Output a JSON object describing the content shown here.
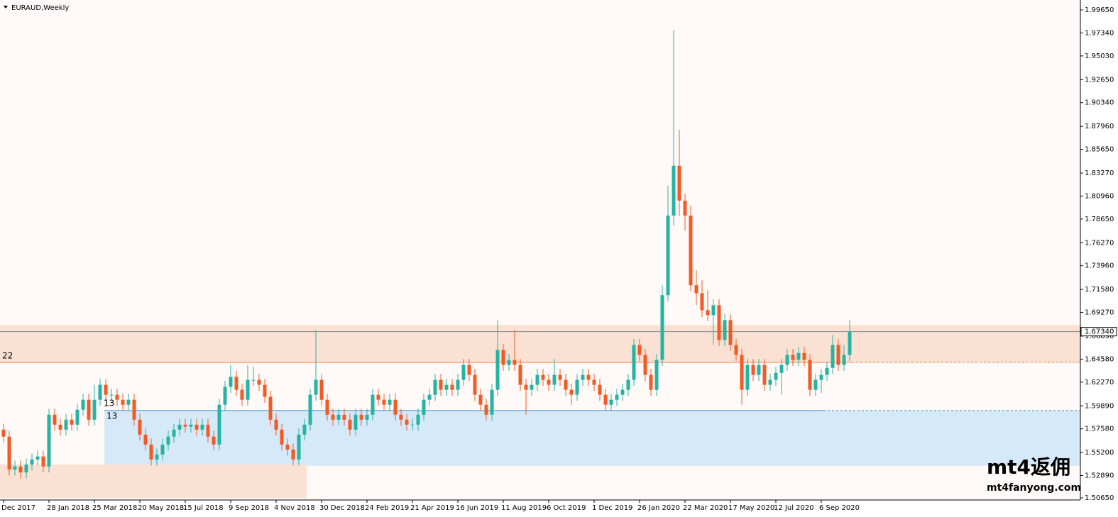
{
  "chart_data": {
    "type": "candlestick",
    "title": "EURAUD,Weekly",
    "up_color": "#26b3a3",
    "down_color": "#f25a26",
    "background": "#fffaf7",
    "ylim": [
      1.5065,
      1.9965
    ],
    "yticks": [
      {
        "value": 1.9965,
        "label": "1.99650"
      },
      {
        "value": 1.9734,
        "label": "1.97340"
      },
      {
        "value": 1.9503,
        "label": "1.95030"
      },
      {
        "value": 1.9265,
        "label": "1.92650"
      },
      {
        "value": 1.9034,
        "label": "1.90340"
      },
      {
        "value": 1.8796,
        "label": "1.87960"
      },
      {
        "value": 1.8565,
        "label": "1.85650"
      },
      {
        "value": 1.8327,
        "label": "1.83270"
      },
      {
        "value": 1.8096,
        "label": "1.80960"
      },
      {
        "value": 1.7865,
        "label": "1.78650"
      },
      {
        "value": 1.7627,
        "label": "1.76270"
      },
      {
        "value": 1.7396,
        "label": "1.73960"
      },
      {
        "value": 1.7158,
        "label": "1.71580"
      },
      {
        "value": 1.6927,
        "label": "1.69270"
      },
      {
        "value": 1.6689,
        "label": "1.66890"
      },
      {
        "value": 1.6458,
        "label": "1.64580"
      },
      {
        "value": 1.6227,
        "label": "1.62270"
      },
      {
        "value": 1.5989,
        "label": "1.59890"
      },
      {
        "value": 1.5758,
        "label": "1.57580"
      },
      {
        "value": 1.552,
        "label": "1.55200"
      },
      {
        "value": 1.5289,
        "label": "1.52890"
      },
      {
        "value": 1.5065,
        "label": "1.50650"
      }
    ],
    "categories": [
      "Dec 2017",
      null,
      null,
      null,
      null,
      null,
      null,
      null,
      "28 Jan 2018",
      null,
      null,
      null,
      null,
      null,
      null,
      null,
      "25 Mar 2018",
      null,
      null,
      null,
      null,
      null,
      null,
      null,
      "20 May 2018",
      null,
      null,
      null,
      null,
      null,
      null,
      null,
      "15 Jul 2018",
      null,
      null,
      null,
      null,
      null,
      null,
      null,
      "9 Sep 2018",
      null,
      null,
      null,
      null,
      null,
      null,
      null,
      "4 Nov 2018",
      null,
      null,
      null,
      null,
      null,
      null,
      null,
      "30 Dec 2018",
      null,
      null,
      null,
      null,
      null,
      null,
      null,
      "24 Feb 2019",
      null,
      null,
      null,
      null,
      null,
      null,
      null,
      "21 Apr 2019",
      null,
      null,
      null,
      null,
      null,
      null,
      null,
      "16 Jun 2019",
      null,
      null,
      null,
      null,
      null,
      null,
      null,
      "11 Aug 2019",
      null,
      null,
      null,
      null,
      null,
      null,
      null,
      "6 Oct 2019",
      null,
      null,
      null,
      null,
      null,
      null,
      null,
      "1 Dec 2019",
      null,
      null,
      null,
      null,
      null,
      null,
      null,
      "26 Jan 2020",
      null,
      null,
      null,
      null,
      null,
      null,
      null,
      "22 Mar 2020",
      null,
      null,
      null,
      null,
      null,
      null,
      null,
      "17 May 2020",
      null,
      null,
      null,
      null,
      null,
      null,
      null,
      "12 Jul 2020",
      null,
      null,
      null,
      null,
      null,
      null,
      null,
      "6 Sep 2020",
      null,
      null,
      null,
      null,
      null
    ],
    "candles": [
      [
        1.575,
        1.581,
        1.562,
        1.568
      ],
      [
        1.568,
        1.574,
        1.529,
        1.535
      ],
      [
        1.535,
        1.544,
        1.529,
        1.538
      ],
      [
        1.538,
        1.544,
        1.526,
        1.532
      ],
      [
        1.532,
        1.546,
        1.526,
        1.54
      ],
      [
        1.54,
        1.551,
        1.534,
        1.545
      ],
      [
        1.545,
        1.554,
        1.539,
        1.548
      ],
      [
        1.548,
        1.554,
        1.532,
        1.538
      ],
      [
        1.538,
        1.596,
        1.532,
        1.59
      ],
      [
        1.59,
        1.596,
        1.574,
        1.58
      ],
      [
        1.58,
        1.586,
        1.569,
        1.575
      ],
      [
        1.575,
        1.591,
        1.569,
        1.585
      ],
      [
        1.585,
        1.591,
        1.574,
        1.58
      ],
      [
        1.58,
        1.601,
        1.574,
        1.595
      ],
      [
        1.595,
        1.611,
        1.589,
        1.605
      ],
      [
        1.605,
        1.611,
        1.579,
        1.585
      ],
      [
        1.585,
        1.62,
        1.579,
        1.605
      ],
      [
        1.605,
        1.626,
        1.599,
        1.62
      ],
      [
        1.62,
        1.626,
        1.604,
        1.61
      ],
      [
        1.61,
        1.616,
        1.604,
        1.61
      ],
      [
        1.61,
        1.616,
        1.599,
        1.605
      ],
      [
        1.605,
        1.611,
        1.594,
        1.6
      ],
      [
        1.6,
        1.611,
        1.594,
        1.605
      ],
      [
        1.605,
        1.611,
        1.579,
        1.585
      ],
      [
        1.585,
        1.591,
        1.564,
        1.57
      ],
      [
        1.57,
        1.576,
        1.554,
        1.56
      ],
      [
        1.56,
        1.566,
        1.539,
        1.545
      ],
      [
        1.545,
        1.556,
        1.539,
        1.55
      ],
      [
        1.55,
        1.566,
        1.544,
        1.56
      ],
      [
        1.56,
        1.574,
        1.554,
        1.568
      ],
      [
        1.568,
        1.581,
        1.562,
        1.575
      ],
      [
        1.575,
        1.586,
        1.569,
        1.58
      ],
      [
        1.58,
        1.586,
        1.572,
        1.578
      ],
      [
        1.578,
        1.586,
        1.572,
        1.58
      ],
      [
        1.58,
        1.586,
        1.569,
        1.575
      ],
      [
        1.575,
        1.586,
        1.569,
        1.58
      ],
      [
        1.58,
        1.586,
        1.562,
        1.568
      ],
      [
        1.568,
        1.574,
        1.554,
        1.56
      ],
      [
        1.56,
        1.606,
        1.554,
        1.6
      ],
      [
        1.6,
        1.624,
        1.594,
        1.618
      ],
      [
        1.618,
        1.64,
        1.612,
        1.628
      ],
      [
        1.628,
        1.634,
        1.609,
        1.615
      ],
      [
        1.615,
        1.621,
        1.599,
        1.605
      ],
      [
        1.605,
        1.64,
        1.599,
        1.625
      ],
      [
        1.625,
        1.638,
        1.619,
        1.625
      ],
      [
        1.625,
        1.631,
        1.614,
        1.62
      ],
      [
        1.62,
        1.626,
        1.602,
        1.608
      ],
      [
        1.608,
        1.614,
        1.579,
        1.585
      ],
      [
        1.585,
        1.591,
        1.569,
        1.575
      ],
      [
        1.575,
        1.581,
        1.554,
        1.56
      ],
      [
        1.56,
        1.566,
        1.549,
        1.555
      ],
      [
        1.555,
        1.561,
        1.539,
        1.545
      ],
      [
        1.545,
        1.576,
        1.539,
        1.57
      ],
      [
        1.57,
        1.586,
        1.564,
        1.58
      ],
      [
        1.58,
        1.616,
        1.574,
        1.61
      ],
      [
        1.61,
        1.675,
        1.604,
        1.625
      ],
      [
        1.625,
        1.631,
        1.599,
        1.605
      ],
      [
        1.605,
        1.611,
        1.584,
        1.59
      ],
      [
        1.59,
        1.596,
        1.579,
        1.585
      ],
      [
        1.585,
        1.596,
        1.579,
        1.59
      ],
      [
        1.59,
        1.596,
        1.579,
        1.585
      ],
      [
        1.585,
        1.591,
        1.569,
        1.575
      ],
      [
        1.575,
        1.596,
        1.569,
        1.59
      ],
      [
        1.59,
        1.596,
        1.579,
        1.585
      ],
      [
        1.585,
        1.596,
        1.579,
        1.59
      ],
      [
        1.59,
        1.616,
        1.584,
        1.61
      ],
      [
        1.61,
        1.616,
        1.599,
        1.605
      ],
      [
        1.605,
        1.611,
        1.594,
        1.6
      ],
      [
        1.6,
        1.611,
        1.594,
        1.605
      ],
      [
        1.605,
        1.611,
        1.584,
        1.59
      ],
      [
        1.59,
        1.596,
        1.579,
        1.585
      ],
      [
        1.585,
        1.591,
        1.574,
        1.58
      ],
      [
        1.58,
        1.586,
        1.574,
        1.58
      ],
      [
        1.58,
        1.596,
        1.574,
        1.59
      ],
      [
        1.59,
        1.611,
        1.584,
        1.605
      ],
      [
        1.605,
        1.616,
        1.599,
        1.61
      ],
      [
        1.61,
        1.631,
        1.604,
        1.625
      ],
      [
        1.625,
        1.631,
        1.609,
        1.615
      ],
      [
        1.615,
        1.626,
        1.609,
        1.62
      ],
      [
        1.62,
        1.626,
        1.609,
        1.615
      ],
      [
        1.615,
        1.631,
        1.609,
        1.625
      ],
      [
        1.625,
        1.646,
        1.619,
        1.64
      ],
      [
        1.64,
        1.646,
        1.624,
        1.63
      ],
      [
        1.63,
        1.636,
        1.604,
        1.61
      ],
      [
        1.61,
        1.616,
        1.594,
        1.6
      ],
      [
        1.6,
        1.606,
        1.584,
        1.59
      ],
      [
        1.59,
        1.621,
        1.584,
        1.615
      ],
      [
        1.615,
        1.685,
        1.609,
        1.655
      ],
      [
        1.655,
        1.661,
        1.634,
        1.64
      ],
      [
        1.64,
        1.651,
        1.634,
        1.645
      ],
      [
        1.645,
        1.675,
        1.634,
        1.64
      ],
      [
        1.64,
        1.646,
        1.614,
        1.62
      ],
      [
        1.62,
        1.626,
        1.59,
        1.615
      ],
      [
        1.615,
        1.626,
        1.609,
        1.62
      ],
      [
        1.62,
        1.636,
        1.614,
        1.63
      ],
      [
        1.63,
        1.636,
        1.619,
        1.625
      ],
      [
        1.625,
        1.631,
        1.614,
        1.62
      ],
      [
        1.62,
        1.646,
        1.614,
        1.63
      ],
      [
        1.63,
        1.636,
        1.619,
        1.625
      ],
      [
        1.625,
        1.631,
        1.609,
        1.615
      ],
      [
        1.615,
        1.621,
        1.6,
        1.61
      ],
      [
        1.61,
        1.631,
        1.604,
        1.625
      ],
      [
        1.625,
        1.636,
        1.619,
        1.63
      ],
      [
        1.63,
        1.636,
        1.619,
        1.625
      ],
      [
        1.625,
        1.631,
        1.614,
        1.62
      ],
      [
        1.62,
        1.626,
        1.604,
        1.61
      ],
      [
        1.61,
        1.616,
        1.594,
        1.6
      ],
      [
        1.6,
        1.611,
        1.594,
        1.605
      ],
      [
        1.605,
        1.616,
        1.599,
        1.61
      ],
      [
        1.61,
        1.621,
        1.604,
        1.615
      ],
      [
        1.615,
        1.631,
        1.609,
        1.625
      ],
      [
        1.625,
        1.666,
        1.619,
        1.66
      ],
      [
        1.66,
        1.666,
        1.644,
        1.65
      ],
      [
        1.65,
        1.656,
        1.624,
        1.63
      ],
      [
        1.63,
        1.636,
        1.609,
        1.615
      ],
      [
        1.615,
        1.651,
        1.609,
        1.645
      ],
      [
        1.645,
        1.72,
        1.639,
        1.71
      ],
      [
        1.71,
        1.82,
        1.704,
        1.79
      ],
      [
        1.79,
        1.976,
        1.78,
        1.84
      ],
      [
        1.84,
        1.876,
        1.79,
        1.805
      ],
      [
        1.805,
        1.812,
        1.775,
        1.79
      ],
      [
        1.79,
        1.8,
        1.714,
        1.72
      ],
      [
        1.72,
        1.735,
        1.7,
        1.712
      ],
      [
        1.712,
        1.725,
        1.688,
        1.695
      ],
      [
        1.695,
        1.715,
        1.684,
        1.69
      ],
      [
        1.69,
        1.706,
        1.66,
        1.7
      ],
      [
        1.7,
        1.706,
        1.659,
        1.665
      ],
      [
        1.665,
        1.691,
        1.659,
        1.685
      ],
      [
        1.685,
        1.691,
        1.654,
        1.66
      ],
      [
        1.66,
        1.666,
        1.644,
        1.65
      ],
      [
        1.65,
        1.656,
        1.6,
        1.615
      ],
      [
        1.615,
        1.646,
        1.609,
        1.64
      ],
      [
        1.64,
        1.646,
        1.624,
        1.63
      ],
      [
        1.63,
        1.646,
        1.624,
        1.64
      ],
      [
        1.64,
        1.646,
        1.614,
        1.62
      ],
      [
        1.62,
        1.631,
        1.614,
        1.625
      ],
      [
        1.625,
        1.638,
        1.619,
        1.632
      ],
      [
        1.632,
        1.646,
        1.61,
        1.64
      ],
      [
        1.64,
        1.656,
        1.634,
        1.65
      ],
      [
        1.65,
        1.656,
        1.639,
        1.645
      ],
      [
        1.645,
        1.658,
        1.639,
        1.652
      ],
      [
        1.652,
        1.658,
        1.639,
        1.645
      ],
      [
        1.645,
        1.651,
        1.609,
        1.615
      ],
      [
        1.615,
        1.631,
        1.609,
        1.625
      ],
      [
        1.625,
        1.636,
        1.612,
        1.63
      ],
      [
        1.63,
        1.643,
        1.624,
        1.637
      ],
      [
        1.637,
        1.67,
        1.631,
        1.66
      ],
      [
        1.66,
        1.666,
        1.634,
        1.64
      ],
      [
        1.64,
        1.66,
        1.634,
        1.65
      ],
      [
        1.65,
        1.685,
        1.644,
        1.6734
      ]
    ],
    "zones": [
      {
        "from": 1.642,
        "to": 1.68,
        "color": "#fbe1d3"
      },
      {
        "from": 1.5387,
        "to": 1.5942,
        "color": "#d6e9f8"
      },
      {
        "from": 1.5065,
        "to": 1.54,
        "color": "#fbe1d3"
      }
    ],
    "levels": [
      {
        "value": 1.6734,
        "color": "#7a8a8a"
      },
      {
        "value": 1.6426,
        "color": "#f0874f"
      },
      {
        "value": 1.5942,
        "color": "#3a8fd0"
      }
    ],
    "price_label": {
      "value": 1.6734,
      "label": "1.67340"
    },
    "annotations": [
      "22",
      "13",
      "13"
    ],
    "watermark": [
      "mt4返佣",
      "mt4fanyong.com"
    ]
  }
}
